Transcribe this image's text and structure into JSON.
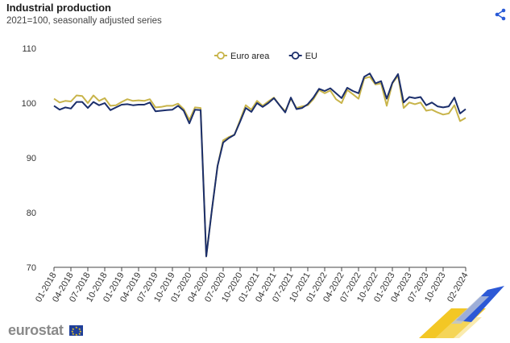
{
  "header": {
    "title": "Industrial production",
    "subtitle": "2021=100, seasonally adjusted series"
  },
  "logo": {
    "text": "eurostat"
  },
  "chart_data": {
    "type": "line",
    "title": "Industrial production",
    "subtitle": "2021=100, seasonally adjusted series",
    "xlabel": "",
    "ylabel": "",
    "ylim": [
      70,
      110
    ],
    "yticks": [
      70,
      80,
      90,
      100,
      110
    ],
    "grid": false,
    "legend": "top-center",
    "x": [
      "01-2018",
      "02-2018",
      "03-2018",
      "04-2018",
      "05-2018",
      "06-2018",
      "07-2018",
      "08-2018",
      "09-2018",
      "10-2018",
      "11-2018",
      "12-2018",
      "01-2019",
      "02-2019",
      "03-2019",
      "04-2019",
      "05-2019",
      "06-2019",
      "07-2019",
      "08-2019",
      "09-2019",
      "10-2019",
      "11-2019",
      "12-2019",
      "01-2020",
      "02-2020",
      "03-2020",
      "04-2020",
      "05-2020",
      "06-2020",
      "07-2020",
      "08-2020",
      "09-2020",
      "10-2020",
      "11-2020",
      "12-2020",
      "01-2021",
      "02-2021",
      "03-2021",
      "04-2021",
      "05-2021",
      "06-2021",
      "07-2021",
      "08-2021",
      "09-2021",
      "10-2021",
      "11-2021",
      "12-2021",
      "01-2022",
      "02-2022",
      "03-2022",
      "04-2022",
      "05-2022",
      "06-2022",
      "07-2022",
      "08-2022",
      "09-2022",
      "10-2022",
      "11-2022",
      "12-2022",
      "01-2023",
      "02-2023",
      "03-2023",
      "04-2023",
      "05-2023",
      "06-2023",
      "07-2023",
      "08-2023",
      "09-2023",
      "10-2023",
      "11-2023",
      "12-2023",
      "01-2024",
      "02-2024"
    ],
    "tick_labels": [
      "01-2018",
      "04-2018",
      "07-2018",
      "10-2018",
      "01-2019",
      "04-2019",
      "07-2019",
      "10-2019",
      "01-2020",
      "04-2020",
      "07-2020",
      "10-2020",
      "01-2021",
      "04-2021",
      "07-2021",
      "10-2021",
      "01-2022",
      "04-2022",
      "07-2022",
      "10-2022",
      "01-2023",
      "04-2023",
      "07-2023",
      "10-2023",
      "02-2024"
    ],
    "series": [
      {
        "name": "Euro area",
        "color": "#c8b44a",
        "values": [
          100.8,
          100.1,
          100.4,
          100.3,
          101.4,
          101.3,
          100.0,
          101.4,
          100.4,
          100.9,
          99.5,
          99.6,
          100.2,
          100.7,
          100.4,
          100.5,
          100.4,
          100.7,
          99.2,
          99.3,
          99.5,
          99.5,
          99.9,
          98.9,
          96.9,
          99.2,
          99.1,
          72.0,
          80.5,
          88.5,
          93.2,
          93.8,
          94.2,
          96.9,
          99.6,
          98.8,
          100.4,
          99.5,
          100.3,
          101.0,
          99.6,
          98.5,
          100.8,
          99.1,
          99.4,
          99.6,
          100.7,
          102.4,
          101.8,
          102.3,
          100.7,
          100.0,
          102.4,
          101.6,
          100.8,
          104.5,
          104.8,
          103.4,
          103.6,
          99.5,
          103.6,
          105.0,
          99.1,
          100.1,
          99.8,
          100.1,
          98.6,
          98.8,
          98.3,
          97.9,
          98.1,
          99.6,
          96.7,
          97.3
        ]
      },
      {
        "name": "EU",
        "color": "#1b2e6b",
        "values": [
          99.5,
          98.8,
          99.2,
          99.0,
          100.2,
          100.2,
          99.1,
          100.2,
          99.6,
          100.0,
          98.7,
          99.2,
          99.7,
          99.8,
          99.6,
          99.7,
          99.7,
          100.1,
          98.5,
          98.6,
          98.7,
          98.8,
          99.5,
          98.6,
          96.3,
          98.8,
          98.7,
          72.0,
          80.5,
          88.5,
          92.8,
          93.6,
          94.2,
          96.6,
          99.1,
          98.4,
          100.0,
          99.3,
          100.0,
          100.9,
          99.6,
          98.3,
          101.0,
          98.9,
          99.1,
          99.8,
          101.0,
          102.6,
          102.2,
          102.7,
          101.8,
          100.9,
          102.8,
          102.2,
          101.8,
          104.8,
          105.4,
          103.6,
          104.0,
          100.8,
          103.7,
          105.3,
          100.1,
          101.1,
          100.9,
          101.1,
          99.6,
          100.1,
          99.4,
          99.2,
          99.4,
          101.0,
          98.1,
          98.9
        ]
      }
    ]
  }
}
